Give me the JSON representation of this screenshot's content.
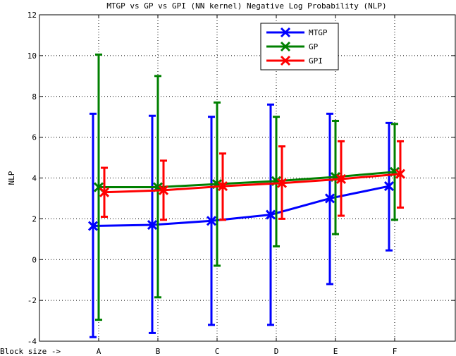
{
  "chart_data": {
    "type": "line",
    "title": "MTGP vs GP vs GPI (NN kernel) Negative Log Probability (NLP)",
    "xlabel": "Block size ->",
    "ylabel": "NLP",
    "categories": [
      "A",
      "B",
      "C",
      "D",
      "E",
      "F"
    ],
    "ylim": [
      -4,
      12
    ],
    "yticks": [
      -4,
      -2,
      0,
      2,
      4,
      6,
      8,
      10,
      12
    ],
    "grid": true,
    "legend_position": "top-right",
    "series": [
      {
        "name": "MTGP",
        "color": "#0000ff",
        "marker": "x",
        "values": [
          1.65,
          1.7,
          1.9,
          2.2,
          3.0,
          3.6
        ],
        "err_low": [
          -3.8,
          -3.6,
          -3.2,
          -3.2,
          -1.2,
          0.45
        ],
        "err_high": [
          7.15,
          7.05,
          7.0,
          7.6,
          7.15,
          6.7
        ]
      },
      {
        "name": "GP",
        "color": "#008000",
        "marker": "x",
        "values": [
          3.55,
          3.55,
          3.7,
          3.85,
          4.05,
          4.3
        ],
        "err_low": [
          -2.95,
          -1.85,
          -0.3,
          0.65,
          1.25,
          1.95
        ],
        "err_high": [
          10.05,
          9.0,
          7.7,
          7.0,
          6.8,
          6.65
        ]
      },
      {
        "name": "GPI",
        "color": "#ff0000",
        "marker": "x",
        "values": [
          3.3,
          3.4,
          3.6,
          3.75,
          3.95,
          4.2
        ],
        "err_low": [
          2.1,
          1.95,
          1.95,
          2.0,
          2.15,
          2.55
        ],
        "err_high": [
          4.5,
          4.85,
          5.2,
          5.55,
          5.8,
          5.8
        ]
      }
    ]
  }
}
